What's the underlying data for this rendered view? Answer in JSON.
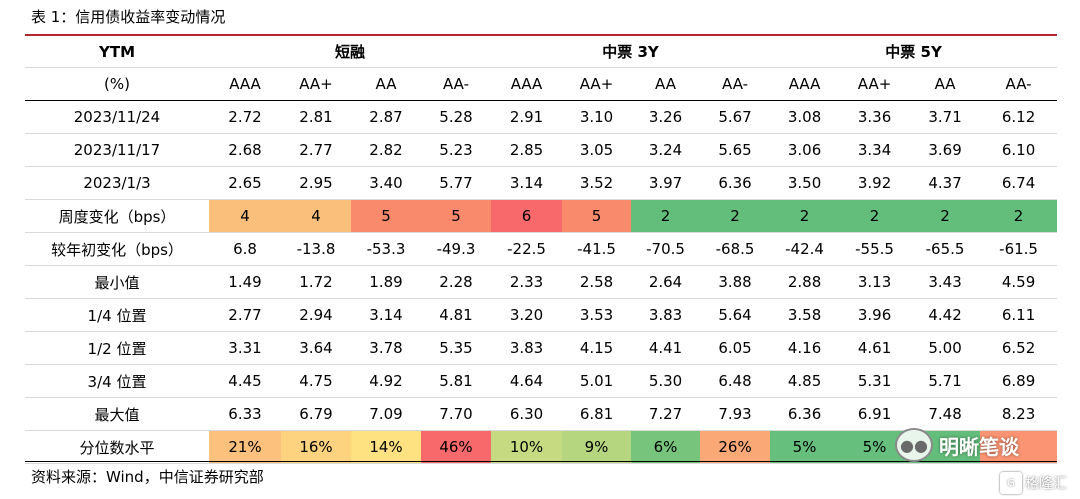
{
  "title": "表 1：信用债收益率变动情况",
  "header": {
    "first_col": "YTM",
    "groups": [
      "短融",
      "中票 3Y",
      "中票 5Y"
    ],
    "unit_label": "(%)",
    "ratings": [
      "AAA",
      "AA+",
      "AA",
      "AA-",
      "AAA",
      "AA+",
      "AA",
      "AA-",
      "AAA",
      "AA+",
      "AA",
      "AA-"
    ]
  },
  "rows": [
    {
      "label": "2023/11/24",
      "values": [
        "2.72",
        "2.81",
        "2.87",
        "5.28",
        "2.91",
        "3.10",
        "3.26",
        "5.67",
        "3.08",
        "3.36",
        "3.71",
        "6.12"
      ],
      "colors": []
    },
    {
      "label": "2023/11/17",
      "values": [
        "2.68",
        "2.77",
        "2.82",
        "5.23",
        "2.85",
        "3.05",
        "3.24",
        "5.65",
        "3.06",
        "3.34",
        "3.69",
        "6.10"
      ],
      "colors": []
    },
    {
      "label": "2023/1/3",
      "values": [
        "2.65",
        "2.95",
        "3.40",
        "5.77",
        "3.14",
        "3.52",
        "3.97",
        "6.36",
        "3.50",
        "3.92",
        "4.37",
        "6.74"
      ],
      "colors": []
    },
    {
      "label": "周度变化（bps）",
      "values": [
        "4",
        "4",
        "5",
        "5",
        "6",
        "5",
        "2",
        "2",
        "2",
        "2",
        "2",
        "2"
      ],
      "colors": [
        "#fbbf7c",
        "#fbbf7c",
        "#f98b6c",
        "#f98b6c",
        "#f8696b",
        "#f98b6c",
        "#63be7b",
        "#63be7b",
        "#63be7b",
        "#63be7b",
        "#63be7b",
        "#63be7b"
      ]
    },
    {
      "label": "较年初变化（bps）",
      "values": [
        "6.8",
        "-13.8",
        "-53.3",
        "-49.3",
        "-22.5",
        "-41.5",
        "-70.5",
        "-68.5",
        "-42.4",
        "-55.5",
        "-65.5",
        "-61.5"
      ],
      "colors": []
    },
    {
      "label": "最小值",
      "values": [
        "1.49",
        "1.72",
        "1.89",
        "2.28",
        "2.33",
        "2.58",
        "2.64",
        "3.88",
        "2.88",
        "3.13",
        "3.43",
        "4.59"
      ],
      "colors": []
    },
    {
      "label": "1/4 位置",
      "values": [
        "2.77",
        "2.94",
        "3.14",
        "4.81",
        "3.20",
        "3.53",
        "3.83",
        "5.64",
        "3.58",
        "3.96",
        "4.42",
        "6.11"
      ],
      "colors": []
    },
    {
      "label": "1/2 位置",
      "values": [
        "3.31",
        "3.64",
        "3.78",
        "5.35",
        "3.83",
        "4.15",
        "4.41",
        "6.05",
        "4.16",
        "4.61",
        "5.00",
        "6.52"
      ],
      "colors": []
    },
    {
      "label": "3/4 位置",
      "values": [
        "4.45",
        "4.75",
        "4.92",
        "5.81",
        "4.64",
        "5.01",
        "5.30",
        "6.48",
        "4.85",
        "5.31",
        "5.71",
        "6.89"
      ],
      "colors": []
    },
    {
      "label": "最大值",
      "values": [
        "6.33",
        "6.79",
        "7.09",
        "7.70",
        "6.30",
        "6.81",
        "7.27",
        "7.93",
        "6.36",
        "6.91",
        "7.48",
        "8.23"
      ],
      "colors": []
    },
    {
      "label": "分位数水平",
      "values": [
        "21%",
        "16%",
        "14%",
        "46%",
        "10%",
        "9%",
        "6%",
        "26%",
        "5%",
        "5%",
        "",
        ""
      ],
      "colors": [
        "#fcc17c",
        "#fdd37f",
        "#fee282",
        "#f8696b",
        "#c6db81",
        "#b5d57f",
        "#77c47d",
        "#fba877",
        "#66bf7c",
        "#66bf7c",
        "#63be7b",
        "#fa9473"
      ]
    }
  ],
  "source": "资料来源：Wind，中信证券研究部",
  "watermark": {
    "icon": "wechat-icon",
    "text": "明晰笔谈"
  },
  "corner_logo": {
    "icon": "gelonghui-logo-icon",
    "text": "格隆汇"
  }
}
